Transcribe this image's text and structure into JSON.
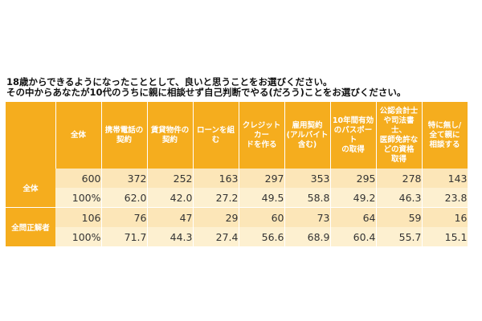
{
  "chart_data": {
    "type": "table",
    "title_lines": [
      "18歳からできるようになったこととして、良いと思うことをお選びください。",
      "その中からあなたが10代のうちに親に相談せず自己判断でやる(だろう)ことをお選びください。"
    ],
    "columns": [
      "全体",
      "携帯電話の\n契約",
      "賃貸物件の\n契約",
      "ローンを組む",
      "クレジットカー\nドを作る",
      "雇用契約\n(アルバイト\n含む)",
      "10年間有効\nのパスポート\nの取得",
      "公認会計士\nや司法書士、\n医師免許な\nどの資格\n取得",
      "特に無し/\n全て親に\n相談する"
    ],
    "groups": [
      {
        "label": "全体",
        "rows": [
          [
            "600",
            "372",
            "252",
            "163",
            "297",
            "353",
            "295",
            "278",
            "143"
          ],
          [
            "100%",
            "62.0",
            "42.0",
            "27.2",
            "49.5",
            "58.8",
            "49.2",
            "46.3",
            "23.8"
          ]
        ]
      },
      {
        "label": "全問正解者",
        "rows": [
          [
            "106",
            "76",
            "47",
            "29",
            "60",
            "73",
            "64",
            "59",
            "16"
          ],
          [
            "100%",
            "71.7",
            "44.3",
            "27.4",
            "56.6",
            "68.9",
            "60.4",
            "55.7",
            "15.1"
          ]
        ]
      }
    ]
  },
  "colors": {
    "header_bg": "#f5ad1e",
    "header_text": "#ffffff",
    "count_row_bg": "#fce6b8",
    "pct_row_bg": "#fdf0d0"
  }
}
